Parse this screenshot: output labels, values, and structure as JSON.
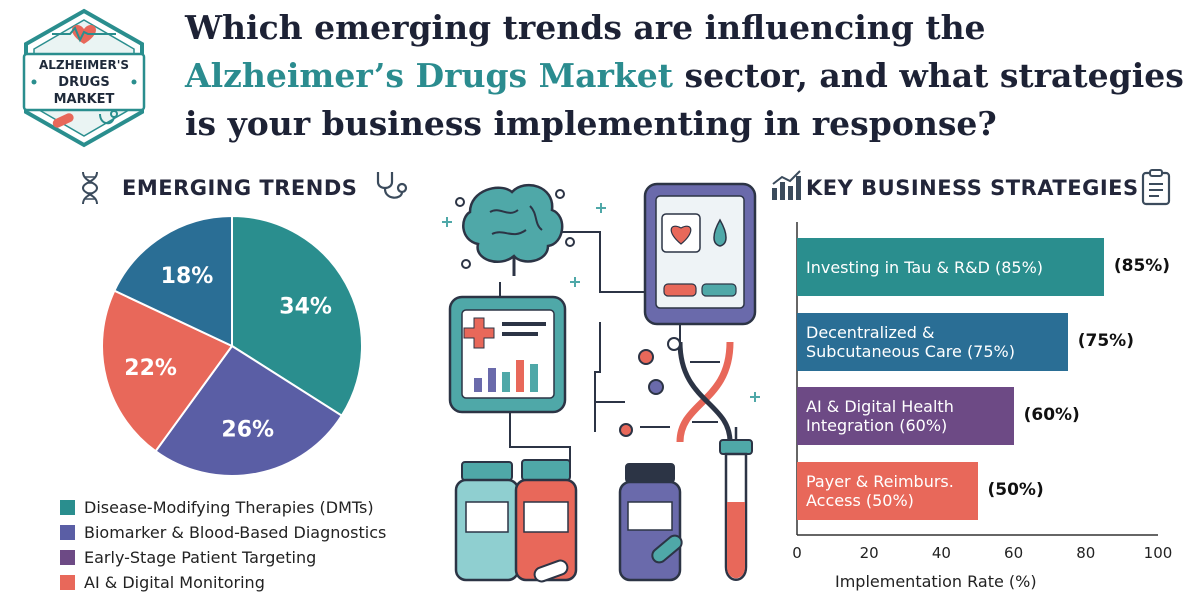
{
  "badge": {
    "line1": "ALZHEIMER'S",
    "line2": "DRUGS",
    "line3": "MARKET"
  },
  "headline": {
    "line1": "Which emerging trends are influencing the",
    "highlight": "Alzheimer’s Drugs Market",
    "line2_rest": " sector, and what strategies",
    "line3": "is your business implementing in response?"
  },
  "colors": {
    "teal": "#2a8e8e",
    "blue": "#2a6e95",
    "indigo": "#5a5ea5",
    "purple": "#6d4a85",
    "coral": "#e8685a"
  },
  "chart_data": [
    {
      "type": "pie",
      "title": "EMERGING TRENDS",
      "slices": [
        {
          "label": "Disease-Modifying Therapies (DMTs)",
          "value": 34,
          "display": "34%",
          "color": "#2a8e8e"
        },
        {
          "label": "Biomarker & Blood-Based Diagnostics",
          "value": 26,
          "display": "26%",
          "color": "#5a5ea5"
        },
        {
          "label": "AI & Digital Monitoring",
          "value": 22,
          "display": "22%",
          "color": "#e8685a"
        },
        {
          "label": "",
          "value": 18,
          "display": "18%",
          "color": "#2a6e95"
        }
      ],
      "legend": [
        {
          "label": "Disease-Modifying Therapies (DMTs)",
          "color": "#2a8e8e"
        },
        {
          "label": "Biomarker & Blood-Based Diagnostics",
          "color": "#5a5ea5"
        },
        {
          "label": "Early-Stage Patient Targeting",
          "color": "#6d4a85"
        },
        {
          "label": "AI & Digital Monitoring",
          "color": "#e8685a"
        }
      ],
      "legend_position": "bottom"
    },
    {
      "type": "bar",
      "orientation": "horizontal",
      "title": "KEY BUSINESS STRATEGIES",
      "categories": [
        [
          "Investing in Tau & R&D (85%)"
        ],
        [
          "Decentralized &",
          "Subcutaneous Care (75%)"
        ],
        [
          "AI & Digital Health",
          "Integration (60%)"
        ],
        [
          "Payer & Reimburs.",
          "Access (50%)"
        ]
      ],
      "values": [
        85,
        75,
        60,
        50
      ],
      "value_labels": [
        "(85%)",
        "(75%)",
        "(60%)",
        "(50%)"
      ],
      "colors": [
        "#2a8e8e",
        "#2a6e95",
        "#6d4a85",
        "#e8685a"
      ],
      "xlabel": "Implementation Rate (%)",
      "xlim": [
        0,
        100
      ],
      "xticks": [
        "0",
        "20",
        "40",
        "60",
        "80",
        "100"
      ],
      "grid": false
    }
  ]
}
